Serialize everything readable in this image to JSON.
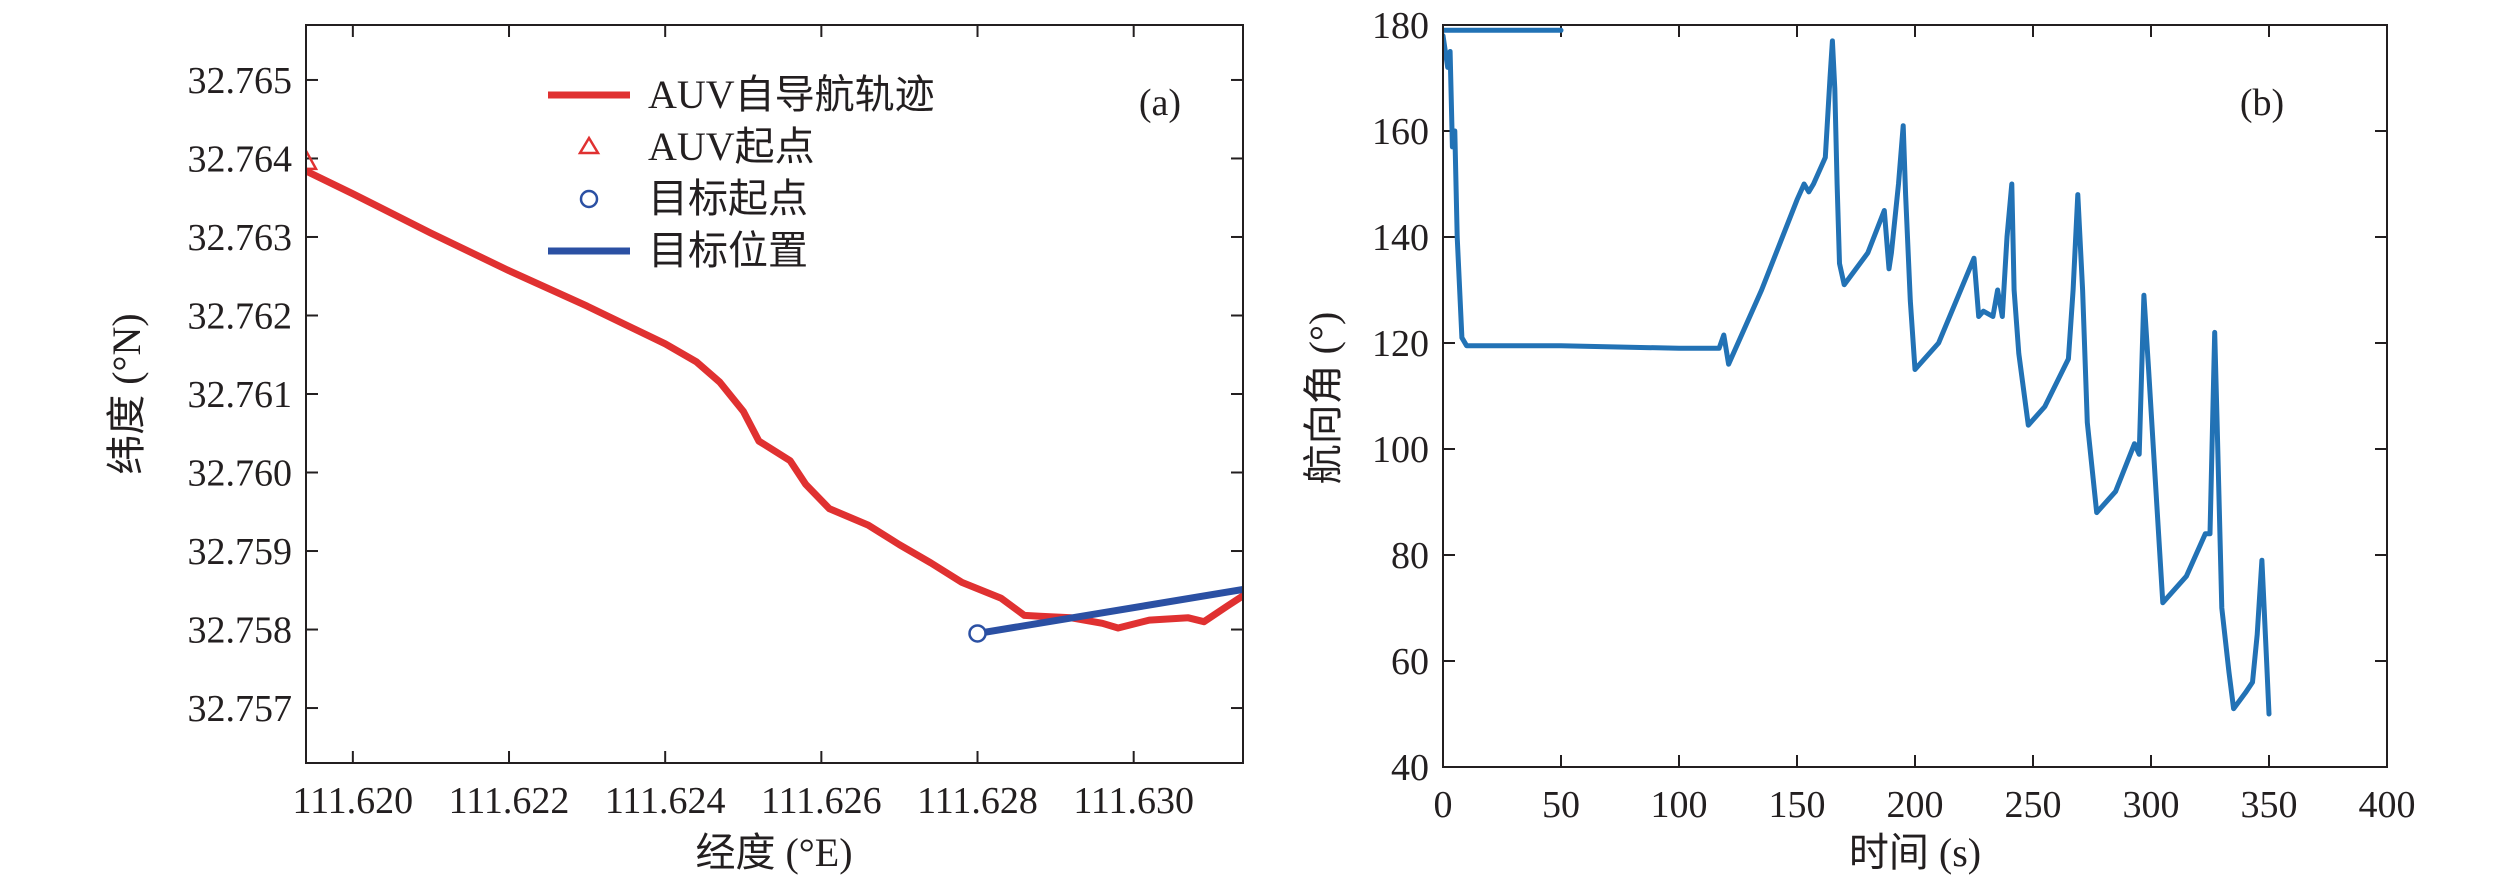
{
  "chart_data": [
    {
      "id": "a",
      "type": "line",
      "panel_tag": "(a)",
      "xlabel": "经度 (°E)",
      "ylabel": "纬度 (°N)",
      "xlim": [
        111.6194,
        111.6314
      ],
      "ylim": [
        32.7563,
        32.7657
      ],
      "xticks": [
        "111.620",
        "111.622",
        "111.624",
        "111.626",
        "111.628",
        "111.630"
      ],
      "xtick_values": [
        111.62,
        111.622,
        111.624,
        111.626,
        111.628,
        111.63
      ],
      "yticks": [
        "32.757",
        "32.758",
        "32.759",
        "32.760",
        "32.761",
        "32.762",
        "32.763",
        "32.764",
        "32.765"
      ],
      "ytick_values": [
        32.757,
        32.758,
        32.759,
        32.76,
        32.761,
        32.762,
        32.763,
        32.764,
        32.765
      ],
      "grid": false,
      "legend_position": "top-center",
      "legend": [
        {
          "label": "AUV自导航轨迹",
          "marker": "line",
          "color": "#e03131"
        },
        {
          "label": "AUV起点",
          "marker": "triangle",
          "color": "#e03131"
        },
        {
          "label": "目标起点",
          "marker": "circle",
          "color": "#2b50a3"
        },
        {
          "label": "目标位置",
          "marker": "line",
          "color": "#2b50a3"
        }
      ],
      "series": [
        {
          "name": "AUV自导航轨迹",
          "color": "#e03131",
          "x": [
            111.6194,
            111.62,
            111.621,
            111.622,
            111.623,
            111.624,
            111.6244,
            111.6247,
            111.625,
            111.6252,
            111.6256,
            111.6258,
            111.6261,
            111.6266,
            111.627,
            111.6274,
            111.6278,
            111.6283,
            111.6286,
            111.6288,
            111.6292,
            111.6296,
            111.6298,
            111.6302,
            111.6307,
            111.6309,
            111.6312,
            111.6314
          ],
          "y": [
            32.76384,
            32.76355,
            32.76305,
            32.76257,
            32.76212,
            32.76164,
            32.76141,
            32.76115,
            32.76078,
            32.7604,
            32.76015,
            32.75985,
            32.75954,
            32.75933,
            32.75908,
            32.75885,
            32.7586,
            32.7584,
            32.75818,
            32.75817,
            32.75815,
            32.75808,
            32.75802,
            32.75812,
            32.75815,
            32.7581,
            32.7583,
            32.75843
          ]
        },
        {
          "name": "目标位置",
          "color": "#2b50a3",
          "x": [
            111.628,
            111.6314
          ],
          "y": [
            32.75795,
            32.75851
          ]
        }
      ],
      "markers": [
        {
          "name": "AUV起点",
          "shape": "triangle",
          "x": 111.6194,
          "y": 32.76397,
          "color": "#e03131"
        },
        {
          "name": "目标起点",
          "shape": "circle",
          "x": 111.628,
          "y": 32.75795,
          "color": "#2b50a3"
        }
      ]
    },
    {
      "id": "b",
      "type": "line",
      "panel_tag": "(b)",
      "xlabel": "时间 (s)",
      "ylabel": "航向角 (°)",
      "xlim": [
        0,
        400
      ],
      "ylim": [
        40,
        180
      ],
      "xticks": [
        "0",
        "50",
        "100",
        "150",
        "200",
        "250",
        "300",
        "350",
        "400"
      ],
      "xtick_values": [
        0,
        50,
        100,
        150,
        200,
        250,
        300,
        350,
        400
      ],
      "yticks": [
        "40",
        "60",
        "80",
        "100",
        "120",
        "140",
        "160",
        "180"
      ],
      "ytick_values": [
        40,
        60,
        80,
        100,
        120,
        140,
        160,
        180
      ],
      "grid": false,
      "series": [
        {
          "name": "",
          "color": "#2272b5",
          "x": [
            0,
            2,
            3,
            4,
            5,
            6,
            8,
            10,
            50,
            100,
            117,
            119,
            121,
            135,
            150,
            153,
            155,
            157,
            162,
            164,
            165,
            166,
            167,
            168,
            170,
            180,
            187,
            189,
            190,
            193,
            195,
            196,
            198,
            200,
            210,
            225,
            227,
            229,
            233,
            235,
            237,
            239,
            241,
            242,
            244,
            248,
            255,
            265,
            267,
            269,
            271,
            273,
            277,
            285,
            293,
            295,
            297,
            299,
            301,
            305,
            315,
            323,
            325,
            327,
            328,
            330,
            333,
            335,
            340,
            343,
            345,
            347,
            349,
            350
          ],
          "y": [
            178,
            172,
            175,
            157,
            160,
            140,
            121,
            119.5,
            119.5,
            119,
            119,
            121.5,
            116,
            130,
            147,
            150,
            148.5,
            150,
            155,
            170,
            177,
            168,
            150,
            135,
            131,
            137,
            145,
            134,
            137,
            150,
            161,
            148,
            128,
            115,
            120,
            136,
            125,
            126,
            125,
            130,
            125,
            140,
            150,
            130,
            118,
            104.5,
            108,
            117,
            130,
            148,
            130,
            105,
            88,
            92,
            101,
            99,
            129,
            115,
            100,
            71,
            76,
            84,
            84,
            122,
            105,
            70,
            58,
            51,
            54,
            56,
            65,
            79,
            60,
            50
          ]
        },
        {
          "name": "",
          "color": "#2272b5",
          "x": [
            0,
            50
          ],
          "y": [
            179,
            179
          ]
        }
      ]
    }
  ]
}
